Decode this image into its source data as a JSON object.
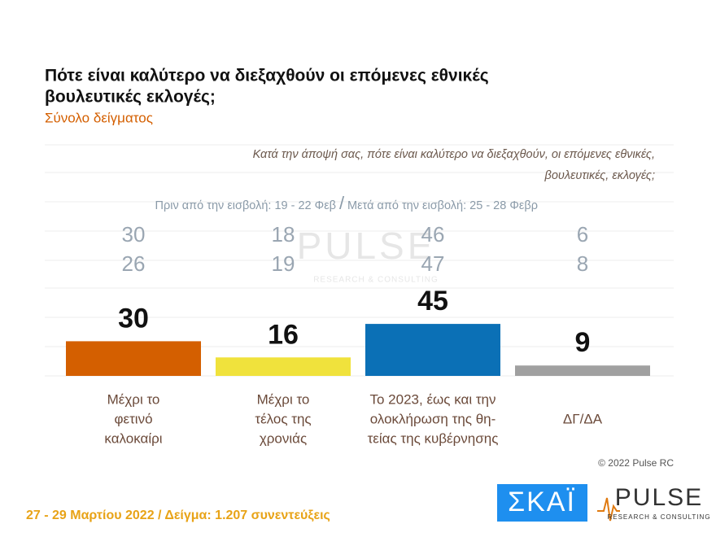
{
  "chart_data": {
    "type": "bar",
    "title": [
      "Πότε είναι καλύτερο να διεξαχθούν οι επόμενες εθνικές",
      "βουλευτικές εκλογές;"
    ],
    "subtitle": "Σύνολο δείγματος",
    "question": [
      "Κατά την άποψή σας, πότε είναι καλύτερο να διεξαχθούν, οι επόμενες εθνικές,",
      "βουλευτικές, εκλογές;"
    ],
    "categories": [
      [
        "Μέχρι το",
        "φετινό",
        "καλοκαίρι"
      ],
      [
        "Μέχρι το",
        "τέλος της",
        "χρονιάς"
      ],
      [
        "Το 2023, έως και την",
        "ολοκλήρωση της θη-",
        "τείας της κυβέρνησης"
      ],
      [
        "ΔΓ/ΔΑ"
      ]
    ],
    "values": [
      30,
      16,
      45,
      9
    ],
    "colors": [
      "#d45f00",
      "#f0e23c",
      "#0b70b6",
      "#a0a0a0"
    ],
    "ylim": [
      0,
      100
    ],
    "earlier_series": [
      {
        "name": "Πριν από την εισβολή: 19 - 22 Φεβ",
        "values": [
          30,
          18,
          46,
          6
        ]
      },
      {
        "name": "Μετά από την εισβολή: 25 - 28 Φεβρ",
        "values": [
          26,
          19,
          47,
          8
        ]
      }
    ],
    "separator": "/",
    "copyright": "© 2022 Pulse RC",
    "footer": "27 - 29  Μαρτίου  2022  /  Δείγμα:  1.207 συνεντεύξεις",
    "logos": {
      "channel": "ΣΚΑΪ",
      "pulse": "PULSE",
      "pulse_tagline": "RESEARCH & CONSULTING"
    }
  }
}
